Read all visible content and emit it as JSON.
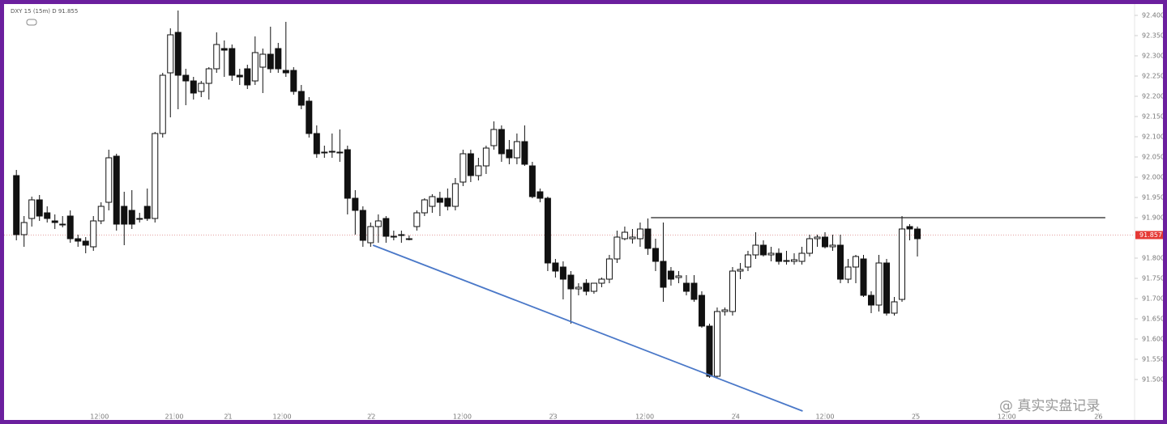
{
  "chart_data": {
    "type": "candlestick",
    "title": "DXY 15 (15m) D 91.855",
    "watermark": "@ 真实实盘记录",
    "up_color": "#ffffff",
    "down_color": "#111111",
    "xlim": [
      -1.6,
      145.2
    ],
    "ylim": [
      91.428,
      92.428
    ],
    "xticks": [
      {
        "value": 10.8,
        "label": "12:00"
      },
      {
        "value": 20.5,
        "label": "21:00"
      },
      {
        "value": 27.5,
        "label": "21"
      },
      {
        "value": 34.5,
        "label": "12:00"
      },
      {
        "value": 46.1,
        "label": "22"
      },
      {
        "value": 57.9,
        "label": "12:00"
      },
      {
        "value": 69.7,
        "label": "23"
      },
      {
        "value": 81.6,
        "label": "12:00"
      },
      {
        "value": 93.4,
        "label": "24"
      },
      {
        "value": 105,
        "label": "12:00"
      },
      {
        "value": 116.8,
        "label": "25"
      },
      {
        "value": 128.6,
        "label": "12:00"
      },
      {
        "value": 140.5,
        "label": "26"
      }
    ],
    "yticks": [
      {
        "value": 92.4,
        "label": "92.400"
      },
      {
        "value": 92.35,
        "label": "92.350"
      },
      {
        "value": 92.3,
        "label": "92.300"
      },
      {
        "value": 92.25,
        "label": "92.250"
      },
      {
        "value": 92.2,
        "label": "92.200"
      },
      {
        "value": 92.15,
        "label": "92.150"
      },
      {
        "value": 92.1,
        "label": "92.100"
      },
      {
        "value": 92.05,
        "label": "92.050"
      },
      {
        "value": 92.0,
        "label": "92.000"
      },
      {
        "value": 91.95,
        "label": "91.950"
      },
      {
        "value": 91.9,
        "label": "91.900"
      },
      {
        "value": 91.8,
        "label": "91.800"
      },
      {
        "value": 91.75,
        "label": "91.750"
      },
      {
        "value": 91.7,
        "label": "91.700"
      },
      {
        "value": 91.65,
        "label": "91.650"
      },
      {
        "value": 91.6,
        "label": "91.600"
      },
      {
        "value": 91.55,
        "label": "91.550"
      },
      {
        "value": 91.5,
        "label": "91.500"
      }
    ],
    "last_price": 91.857,
    "resistance": {
      "value": 91.9,
      "from": 82.4,
      "to": 141.4,
      "color": "#222222"
    },
    "trendline": {
      "from": [
        46.3,
        91.832
      ],
      "to": [
        102.1,
        91.422
      ],
      "color": "#4a78c8"
    },
    "candles": [
      [
        92.004,
        92.018,
        91.844,
        91.858
      ],
      [
        91.858,
        91.904,
        91.828,
        91.888
      ],
      [
        91.898,
        91.952,
        91.878,
        91.944
      ],
      [
        91.944,
        91.956,
        91.892,
        91.904
      ],
      [
        91.912,
        91.928,
        91.888,
        91.898
      ],
      [
        91.892,
        91.908,
        91.872,
        91.888
      ],
      [
        91.884,
        91.904,
        91.876,
        91.882
      ],
      [
        91.904,
        91.918,
        91.838,
        91.848
      ],
      [
        91.848,
        91.858,
        91.828,
        91.842
      ],
      [
        91.842,
        91.852,
        91.812,
        91.832
      ],
      [
        91.828,
        91.904,
        91.818,
        91.892
      ],
      [
        91.892,
        91.938,
        91.884,
        91.928
      ],
      [
        91.938,
        92.068,
        91.918,
        92.048
      ],
      [
        92.052,
        92.058,
        91.868,
        91.884
      ],
      [
        91.928,
        91.964,
        91.832,
        91.884
      ],
      [
        91.918,
        91.968,
        91.872,
        91.884
      ],
      [
        91.898,
        91.912,
        91.888,
        91.896
      ],
      [
        91.928,
        91.972,
        91.892,
        91.898
      ],
      [
        91.898,
        92.112,
        91.888,
        92.108
      ],
      [
        92.108,
        92.258,
        92.098,
        92.252
      ],
      [
        92.258,
        92.368,
        92.148,
        92.352
      ],
      [
        92.358,
        92.412,
        92.168,
        92.252
      ],
      [
        92.252,
        92.268,
        92.178,
        92.238
      ],
      [
        92.238,
        92.248,
        92.192,
        92.208
      ],
      [
        92.212,
        92.238,
        92.198,
        92.232
      ],
      [
        92.232,
        92.272,
        92.192,
        92.268
      ],
      [
        92.268,
        92.358,
        92.258,
        92.328
      ],
      [
        92.318,
        92.338,
        92.248,
        92.314
      ],
      [
        92.318,
        92.328,
        92.238,
        92.252
      ],
      [
        92.252,
        92.268,
        92.228,
        92.248
      ],
      [
        92.268,
        92.278,
        92.218,
        92.228
      ],
      [
        92.238,
        92.348,
        92.228,
        92.308
      ],
      [
        92.272,
        92.318,
        92.208,
        92.304
      ],
      [
        92.304,
        92.372,
        92.258,
        92.268
      ],
      [
        92.318,
        92.332,
        92.258,
        92.268
      ],
      [
        92.264,
        92.384,
        92.248,
        92.258
      ],
      [
        92.264,
        92.272,
        92.204,
        92.212
      ],
      [
        92.212,
        92.228,
        92.168,
        92.178
      ],
      [
        92.188,
        92.198,
        92.098,
        92.108
      ],
      [
        92.108,
        92.128,
        92.048,
        92.058
      ],
      [
        92.062,
        92.078,
        92.048,
        92.06
      ],
      [
        92.062,
        92.108,
        92.048,
        92.064
      ],
      [
        92.062,
        92.118,
        92.038,
        92.06
      ],
      [
        92.068,
        92.078,
        91.908,
        91.948
      ],
      [
        91.948,
        91.968,
        91.858,
        91.918
      ],
      [
        91.918,
        91.928,
        91.828,
        91.844
      ],
      [
        91.838,
        91.888,
        91.828,
        91.878
      ],
      [
        91.878,
        91.908,
        91.838,
        91.892
      ],
      [
        91.898,
        91.904,
        91.838,
        91.854
      ],
      [
        91.852,
        91.868,
        91.844,
        91.854
      ],
      [
        91.858,
        91.868,
        91.838,
        91.856
      ],
      [
        91.848,
        91.856,
        91.844,
        91.846
      ],
      [
        91.878,
        91.918,
        91.868,
        91.912
      ],
      [
        91.912,
        91.948,
        91.904,
        91.944
      ],
      [
        91.928,
        91.958,
        91.912,
        91.952
      ],
      [
        91.948,
        91.964,
        91.904,
        91.938
      ],
      [
        91.948,
        91.972,
        91.918,
        91.928
      ],
      [
        91.928,
        91.998,
        91.918,
        91.984
      ],
      [
        91.988,
        92.068,
        91.978,
        92.058
      ],
      [
        92.058,
        92.068,
        91.988,
        92.004
      ],
      [
        92.004,
        92.048,
        91.992,
        92.028
      ],
      [
        92.028,
        92.078,
        92.008,
        92.072
      ],
      [
        92.078,
        92.138,
        92.068,
        92.118
      ],
      [
        92.118,
        92.128,
        92.038,
        92.058
      ],
      [
        92.068,
        92.092,
        92.032,
        92.048
      ],
      [
        92.048,
        92.108,
        92.032,
        92.088
      ],
      [
        92.088,
        92.128,
        92.028,
        92.032
      ],
      [
        92.028,
        92.038,
        91.948,
        91.952
      ],
      [
        91.964,
        91.972,
        91.938,
        91.948
      ],
      [
        91.948,
        91.952,
        91.768,
        91.788
      ],
      [
        91.788,
        91.798,
        91.752,
        91.768
      ],
      [
        91.778,
        91.792,
        91.698,
        91.748
      ],
      [
        91.758,
        91.768,
        91.638,
        91.724
      ],
      [
        91.724,
        91.738,
        91.708,
        91.728
      ],
      [
        91.738,
        91.748,
        91.708,
        91.718
      ],
      [
        91.718,
        91.738,
        91.712,
        91.738
      ],
      [
        91.738,
        91.752,
        91.728,
        91.748
      ],
      [
        91.748,
        91.808,
        91.738,
        91.798
      ],
      [
        91.798,
        91.868,
        91.788,
        91.852
      ],
      [
        91.848,
        91.878,
        91.844,
        91.864
      ],
      [
        91.848,
        91.872,
        91.836,
        91.852
      ],
      [
        91.848,
        91.888,
        91.828,
        91.872
      ],
      [
        91.872,
        91.898,
        91.808,
        91.824
      ],
      [
        91.824,
        91.848,
        91.768,
        91.792
      ],
      [
        91.792,
        91.888,
        91.692,
        91.728
      ],
      [
        91.768,
        91.778,
        91.732,
        91.748
      ],
      [
        91.752,
        91.768,
        91.738,
        91.756
      ],
      [
        91.738,
        91.758,
        91.708,
        91.718
      ],
      [
        91.738,
        91.758,
        91.692,
        91.698
      ],
      [
        91.708,
        91.718,
        91.628,
        91.632
      ],
      [
        91.632,
        91.638,
        91.504,
        91.508
      ],
      [
        91.508,
        91.678,
        91.504,
        91.668
      ],
      [
        91.668,
        91.678,
        91.658,
        91.672
      ],
      [
        91.668,
        91.778,
        91.658,
        91.768
      ],
      [
        91.768,
        91.788,
        91.748,
        91.772
      ],
      [
        91.778,
        91.818,
        91.768,
        91.808
      ],
      [
        91.808,
        91.864,
        91.798,
        91.832
      ],
      [
        91.832,
        91.844,
        91.804,
        91.808
      ],
      [
        91.808,
        91.828,
        91.792,
        91.812
      ],
      [
        91.812,
        91.824,
        91.784,
        91.792
      ],
      [
        91.792,
        91.818,
        91.784,
        91.794
      ],
      [
        91.792,
        91.812,
        91.784,
        91.796
      ],
      [
        91.792,
        91.828,
        91.784,
        91.812
      ],
      [
        91.812,
        91.858,
        91.804,
        91.848
      ],
      [
        91.848,
        91.858,
        91.828,
        91.852
      ],
      [
        91.852,
        91.864,
        91.824,
        91.828
      ],
      [
        91.828,
        91.858,
        91.818,
        91.832
      ],
      [
        91.832,
        91.858,
        91.738,
        91.748
      ],
      [
        91.748,
        91.798,
        91.738,
        91.778
      ],
      [
        91.778,
        91.808,
        91.738,
        91.804
      ],
      [
        91.798,
        91.808,
        91.704,
        91.708
      ],
      [
        91.708,
        91.718,
        91.664,
        91.684
      ],
      [
        91.684,
        91.808,
        91.668,
        91.788
      ],
      [
        91.788,
        91.798,
        91.658,
        91.664
      ],
      [
        91.664,
        91.704,
        91.658,
        91.692
      ],
      [
        91.698,
        91.904,
        91.692,
        91.872
      ],
      [
        91.878,
        91.884,
        91.844,
        91.872
      ],
      [
        91.872,
        91.878,
        91.804,
        91.848
      ]
    ]
  }
}
